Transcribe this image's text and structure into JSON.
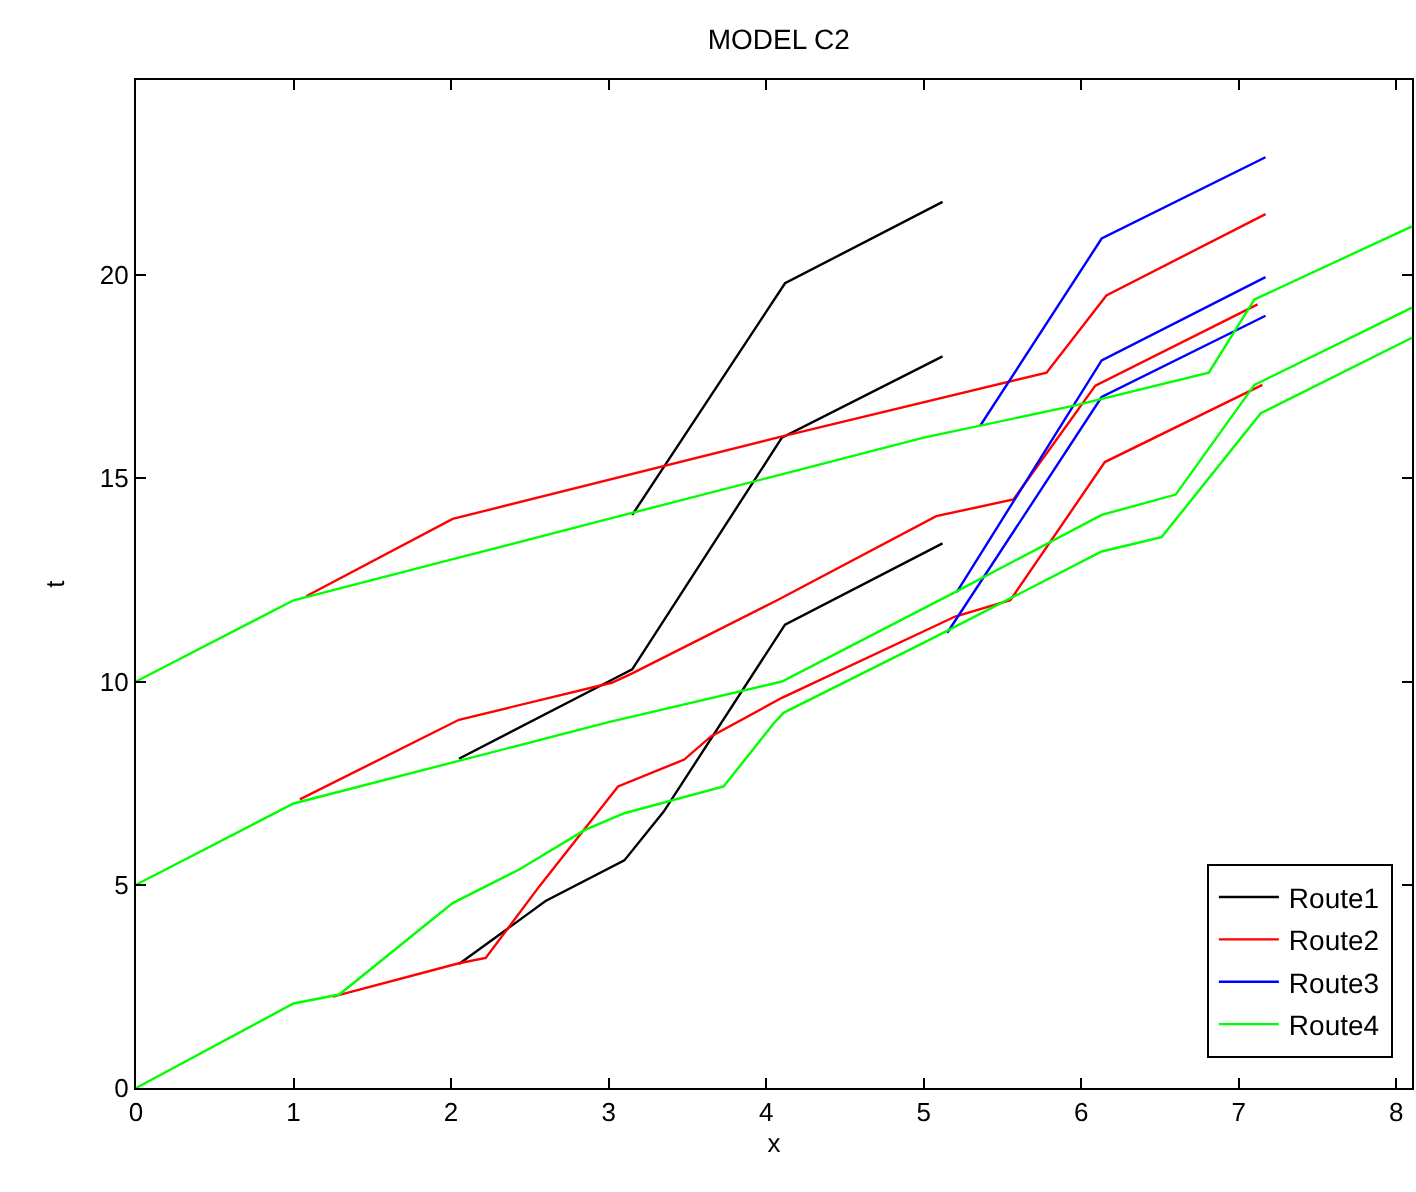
{
  "chart_data": {
    "type": "line",
    "title": "MODEL C2",
    "xlabel": "x",
    "ylabel": "t",
    "xlim": [
      0,
      8.1
    ],
    "ylim": [
      0,
      24.8
    ],
    "xticks": [
      0,
      1,
      2,
      3,
      4,
      5,
      6,
      7,
      8
    ],
    "yticks": [
      0,
      5,
      10,
      15,
      20
    ],
    "grid": false,
    "legend": "bottom right",
    "marker": "none",
    "line_style": "solid",
    "series": [
      {
        "name": "Route1",
        "color": "#000000",
        "x": [
          3.15,
          4.12,
          5.12,
          null,
          2.05,
          3.0,
          3.15,
          4.1,
          5.12,
          null,
          2.05,
          2.6,
          3.1,
          3.35,
          4.12,
          5.12
        ],
        "values": [
          14.1,
          19.8,
          21.8,
          null,
          8.1,
          10.0,
          10.3,
          16.0,
          18.0,
          null,
          3.05,
          4.6,
          5.6,
          6.8,
          11.4,
          13.4
        ]
      },
      {
        "name": "Route2",
        "color": "#ff0000",
        "x": [
          1.08,
          2.01,
          4.07,
          5.78,
          6.16,
          7.17,
          null,
          1.04,
          2.05,
          3.02,
          3.15,
          4.07,
          5.08,
          5.57,
          6.09,
          7.12,
          null,
          1.25,
          2.05,
          2.22,
          2.56,
          3.06,
          3.48,
          3.65,
          4.1,
          5.2,
          5.55,
          6.15,
          7.15
        ],
        "values": [
          12.1,
          14.0,
          16.0,
          17.6,
          19.5,
          21.5,
          null,
          7.1,
          9.06,
          9.97,
          10.2,
          12.0,
          14.07,
          14.48,
          17.28,
          19.28,
          null,
          2.25,
          3.07,
          3.2,
          4.96,
          7.42,
          8.08,
          8.65,
          9.6,
          11.6,
          12.0,
          15.4,
          17.3
        ]
      },
      {
        "name": "Route3",
        "color": "#0000ff",
        "x": [
          5.36,
          6.13,
          7.17,
          null,
          5.21,
          6.13,
          7.17,
          null,
          5.15,
          6.13,
          7.17
        ],
        "values": [
          16.3,
          20.9,
          22.9,
          null,
          12.2,
          17.9,
          19.95,
          null,
          11.2,
          17.0,
          19.0
        ]
      },
      {
        "name": "Route4",
        "color": "#00ff00",
        "x": [
          0,
          1.0,
          2.0,
          3.0,
          4.0,
          5.0,
          5.97,
          6.81,
          7.1,
          8.1,
          null,
          0,
          1.0,
          2.0,
          3.0,
          4.1,
          5.2,
          6.13,
          6.6,
          7.1,
          8.1,
          null,
          0,
          1.0,
          1.29,
          2.01,
          2.43,
          2.85,
          3.1,
          3.73,
          4.05,
          4.11,
          5.04,
          6.13,
          6.51,
          7.14,
          8.1
        ],
        "values": [
          10.0,
          12.0,
          13.0,
          14.0,
          15.0,
          16.0,
          16.8,
          17.6,
          19.4,
          21.2,
          null,
          5.0,
          7.0,
          8.0,
          9.0,
          10.0,
          12.2,
          14.1,
          14.6,
          17.3,
          19.2,
          null,
          0,
          2.08,
          2.3,
          4.55,
          5.37,
          6.35,
          6.76,
          7.42,
          8.98,
          9.23,
          11.03,
          13.2,
          13.55,
          16.6,
          18.46
        ]
      }
    ]
  }
}
